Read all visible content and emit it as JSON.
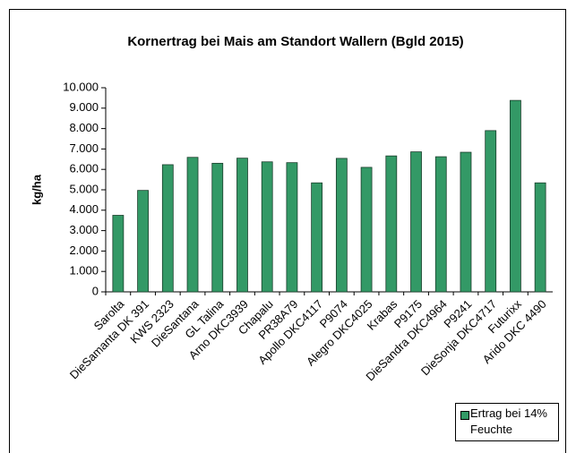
{
  "chart_data": {
    "type": "bar",
    "title": "Kornertrag bei Mais am Standort Wallern (Bgld 2015)",
    "y_label": "kg/ha",
    "categories": [
      "Sarolta",
      "DieSamanta DK 391",
      "KWS 2323",
      "DieSantana",
      "GL Talina",
      "Arno DKC3939",
      "Chapalu",
      "PR38A79",
      "Apollo DKC4117",
      "P9074",
      "Alegro DKC4025",
      "Krabas",
      "P9175",
      "DieSandra DKC4964",
      "P9241",
      "DieSonja DKC4717",
      "Futurixx",
      "Arido DKC 4490"
    ],
    "series": [
      {
        "name": "Ertrag bei 14% Feuchte",
        "color": "#339966",
        "values": [
          3750,
          4970,
          6230,
          6590,
          6300,
          6550,
          6370,
          6330,
          5340,
          6540,
          6100,
          6660,
          6860,
          6620,
          6840,
          7900,
          9380,
          5340
        ]
      }
    ],
    "ylim": [
      0,
      10000
    ],
    "yticks": [
      0,
      {
        "value": 1000,
        "label": "1.000"
      },
      {
        "value": 2000,
        "label": "2.000"
      },
      {
        "value": 3000,
        "label": "3.000"
      },
      {
        "value": 4000,
        "label": "4.000"
      },
      {
        "value": 5000,
        "label": "5.000"
      },
      {
        "value": 6000,
        "label": "6.000"
      },
      {
        "value": 7000,
        "label": "7.000"
      },
      {
        "value": 8000,
        "label": "8.000"
      },
      {
        "value": 9000,
        "label": "9.000"
      },
      {
        "value": 10000,
        "label": "10.000"
      }
    ],
    "grid": false,
    "legend": "bottom-right"
  }
}
